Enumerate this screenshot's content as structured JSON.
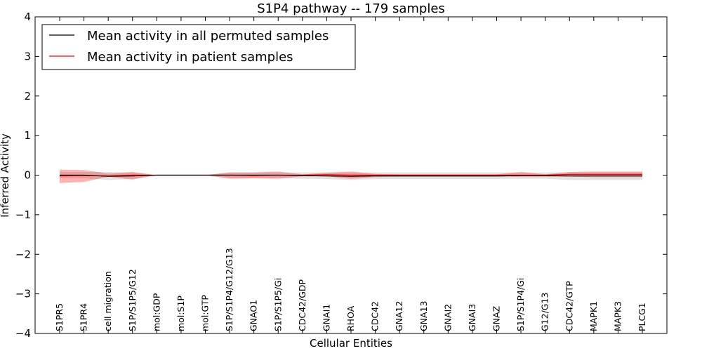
{
  "chart_data": {
    "type": "line",
    "title": "S1P4 pathway -- 179 samples",
    "xlabel": "Cellular Entities",
    "ylabel": "Inferred Activity",
    "ylim": [
      -4,
      4
    ],
    "yticks": [
      4,
      3,
      2,
      1,
      0,
      -1,
      -2,
      -3,
      -4
    ],
    "ytick_labels": [
      "4",
      "3",
      "2",
      "1",
      "0",
      "−1",
      "−2",
      "−3",
      "−4"
    ],
    "categories": [
      "S1PR5",
      "S1PR4",
      "cell migration",
      "S1P/S1P5/G12",
      "mol:GDP",
      "mol:S1P",
      "mol:GTP",
      "S1P/S1P4/G12/G13",
      "GNAO1",
      "S1P/S1P5/Gi",
      "CDC42/GDP",
      "GNAI1",
      "RHOA",
      "CDC42",
      "GNA12",
      "GNA13",
      "GNAI2",
      "GNAI3",
      "GNAZ",
      "S1P/S1P4/Gi",
      "G12/G13",
      "CDC42/GTP",
      "MAPK1",
      "MAPK3",
      "PLCG1"
    ],
    "series": [
      {
        "name": "Mean activity in all permuted samples",
        "color": "#000000",
        "values": [
          0.0,
          0.0,
          -0.03,
          -0.02,
          0.0,
          0.0,
          0.0,
          0.0,
          0.0,
          0.0,
          -0.01,
          -0.02,
          -0.03,
          -0.02,
          -0.02,
          -0.02,
          -0.02,
          -0.02,
          -0.02,
          -0.01,
          -0.01,
          -0.02,
          -0.02,
          -0.02,
          -0.02
        ],
        "band_upper": [
          0.08,
          0.08,
          0.08,
          0.07,
          0.0,
          0.0,
          0.0,
          0.07,
          0.07,
          0.07,
          0.07,
          0.07,
          0.07,
          0.07,
          0.07,
          0.07,
          0.07,
          0.07,
          0.07,
          0.07,
          0.07,
          0.07,
          0.07,
          0.07,
          0.07
        ],
        "band_lower": [
          -0.08,
          -0.08,
          -0.12,
          -0.1,
          0.0,
          0.0,
          0.0,
          -0.07,
          -0.07,
          -0.07,
          -0.09,
          -0.1,
          -0.12,
          -0.1,
          -0.1,
          -0.1,
          -0.1,
          -0.1,
          -0.1,
          -0.09,
          -0.09,
          -0.12,
          -0.12,
          -0.12,
          -0.12
        ]
      },
      {
        "name": "Mean activity in patient samples",
        "color": "#ff0000",
        "values": [
          -0.02,
          -0.01,
          -0.02,
          0.0,
          0.0,
          0.0,
          0.0,
          0.0,
          -0.01,
          0.0,
          0.0,
          0.01,
          0.0,
          0.0,
          0.0,
          0.0,
          0.0,
          0.0,
          0.0,
          0.0,
          0.0,
          0.02,
          0.02,
          0.02,
          0.02
        ],
        "band_upper": [
          0.14,
          0.13,
          0.04,
          0.08,
          0.0,
          0.0,
          0.0,
          0.07,
          0.07,
          0.09,
          0.02,
          0.06,
          0.09,
          0.03,
          0.02,
          0.02,
          0.02,
          0.02,
          0.02,
          0.08,
          0.02,
          0.08,
          0.09,
          0.09,
          0.09
        ],
        "band_lower": [
          -0.2,
          -0.17,
          -0.04,
          -0.11,
          0.0,
          0.0,
          0.0,
          -0.09,
          -0.08,
          -0.09,
          -0.03,
          -0.03,
          -0.09,
          -0.05,
          -0.04,
          -0.04,
          -0.04,
          -0.04,
          -0.04,
          -0.04,
          -0.04,
          -0.04,
          -0.05,
          -0.05,
          -0.05
        ]
      }
    ],
    "legend_position": "top-left",
    "grid": false
  }
}
